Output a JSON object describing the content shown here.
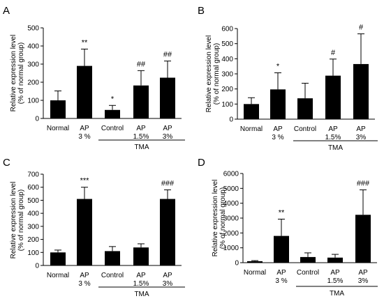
{
  "chart_data": [
    {
      "panel": "A",
      "type": "bar",
      "ylabel": [
        "Relative expression level",
        "(% of normal group)"
      ],
      "ylim": [
        0,
        500
      ],
      "yticks": [
        0,
        100,
        200,
        300,
        400,
        500
      ],
      "categories": [
        [
          "Normal"
        ],
        [
          "AP",
          "3 %"
        ],
        [
          "Control"
        ],
        [
          "AP",
          "1.5%"
        ],
        [
          "AP",
          "3%"
        ]
      ],
      "values": [
        100,
        290,
        47,
        182,
        225
      ],
      "errors": [
        52,
        93,
        25,
        82,
        92
      ],
      "annotations": [
        "",
        "**",
        "*",
        "##",
        "##"
      ],
      "group_label": "TMA",
      "grid": false
    },
    {
      "panel": "B",
      "type": "bar",
      "ylabel": [
        "Relative expression level",
        "(% of normal group)"
      ],
      "ylim": [
        0,
        600
      ],
      "yticks": [
        0,
        100,
        200,
        300,
        400,
        500,
        600
      ],
      "categories": [
        [
          "Normal"
        ],
        [
          "AP",
          "3 %"
        ],
        [
          "Control"
        ],
        [
          "AP",
          "1.5%"
        ],
        [
          "AP",
          "3%"
        ]
      ],
      "values": [
        100,
        197,
        138,
        288,
        365
      ],
      "errors": [
        42,
        110,
        100,
        110,
        200
      ],
      "annotations": [
        "",
        "*",
        "",
        "#",
        "#"
      ],
      "group_label": "TMA",
      "grid": false
    },
    {
      "panel": "C",
      "type": "bar",
      "ylabel": [
        "Relative expression level",
        "(% of normal group)"
      ],
      "ylim": [
        0,
        700
      ],
      "yticks": [
        0,
        100,
        200,
        300,
        400,
        500,
        600,
        700
      ],
      "categories": [
        [
          "Normal"
        ],
        [
          "AP",
          "3 %"
        ],
        [
          "Control"
        ],
        [
          "AP",
          "1.5%"
        ],
        [
          "AP",
          "3%"
        ]
      ],
      "values": [
        100,
        510,
        110,
        138,
        510
      ],
      "errors": [
        18,
        90,
        35,
        28,
        70
      ],
      "annotations": [
        "",
        "***",
        "",
        "",
        "###"
      ],
      "group_label": "TMA",
      "grid": false
    },
    {
      "panel": "D",
      "type": "bar",
      "ylabel": [
        "Relative expression level",
        "(% of normal group)"
      ],
      "ylim": [
        0,
        6000
      ],
      "yticks": [
        0,
        1000,
        2000,
        3000,
        4000,
        5000,
        6000
      ],
      "categories": [
        [
          "Normal"
        ],
        [
          "AP",
          "3 %"
        ],
        [
          "Control"
        ],
        [
          "AP",
          "1.5%"
        ],
        [
          "AP",
          "3%"
        ]
      ],
      "values": [
        100,
        1800,
        380,
        340,
        3220
      ],
      "errors": [
        40,
        1130,
        280,
        220,
        1680
      ],
      "annotations": [
        "",
        "**",
        "",
        "",
        "###"
      ],
      "group_label": "TMA",
      "grid": false
    }
  ]
}
